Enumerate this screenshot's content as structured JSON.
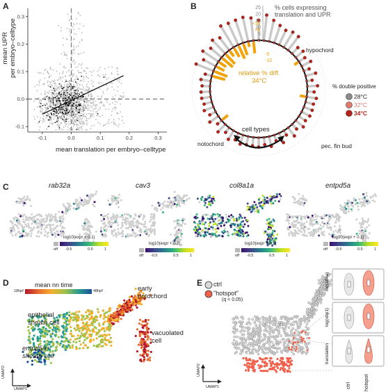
{
  "panels": {
    "A": {
      "label": "A",
      "chart_data": {
        "type": "scatter",
        "xlabel": "mean translation per embryo–celltype",
        "ylabel": "mean UPR\nper embryo–celltype",
        "xlim": [
          -0.15,
          0.33
        ],
        "ylim": [
          -0.12,
          0.33
        ],
        "xticks": [
          "-0.1",
          "0.0",
          "0.1",
          "0.2",
          "0.3"
        ],
        "yticks": [
          "-0.1",
          "0.0",
          "0.1",
          "0.2",
          "0.3"
        ],
        "reference_lines": {
          "x": 0.0,
          "y": 0.0
        },
        "fit_line": {
          "x": [
            -0.1,
            0.18
          ],
          "y": [
            -0.055,
            0.085
          ]
        },
        "series": [
          {
            "color": "#b5b5b5"
          },
          {
            "color": "#111111"
          }
        ]
      }
    },
    "B": {
      "label": "B",
      "chart_data": {
        "type": "bar",
        "title": "% cells expressing\ntranslation and UPR",
        "scale_ticks": [
          "25",
          "20",
          "15",
          "10",
          "5",
          "0"
        ],
        "relative_ticks": [
          "+10",
          "+5",
          "-5",
          "-10"
        ],
        "relative_label": "relative % diff.\n34°C",
        "annotations": [
          "hypochord",
          "notochord",
          "pec. fin bud",
          "cell types"
        ],
        "legend_title": "% double positive",
        "legend": [
          {
            "label": "28°C",
            "color": "#8c8c8c"
          },
          {
            "label": "32°C",
            "color": "#e07a6e"
          },
          {
            "label": "34°C",
            "color": "#b7231a"
          }
        ],
        "accent": "#f0a30a",
        "ring_color": "#111111"
      }
    },
    "C": {
      "label": "C",
      "genes": [
        "rab32a",
        "cav3",
        "col8a1a",
        "entpd5a"
      ],
      "colorbar_title": "log10(expr + 0.1)",
      "colorbar_ticks": [
        "off",
        "-0.5",
        "0.5",
        "1"
      ]
    },
    "D": {
      "label": "D",
      "colorbar_title": "mean nn time",
      "colorbar_min": "18hpf",
      "colorbar_max": "48hpf",
      "annotations": [
        "early\nnotochord",
        "epithelial\nsheath cell",
        "vacuolated\ncell",
        "entpd5a+\nsheath cell"
      ],
      "axis_labels": [
        "UMAP2",
        "UMAP1"
      ]
    },
    "E": {
      "label": "E",
      "legend": [
        {
          "label": "ctrl",
          "color": "#d9d9d9"
        },
        {
          "label": "\"hotspot\"",
          "color": "#f0604a"
        }
      ],
      "legend_note": "(q < 0.05)",
      "axis_labels": [
        "UMAP2",
        "UMAP1"
      ],
      "violin_ylabels": [
        "log(atf4a)",
        "log(xbp1)",
        "translation"
      ],
      "violin_groups": [
        "ctrl",
        "hotspot"
      ]
    }
  }
}
